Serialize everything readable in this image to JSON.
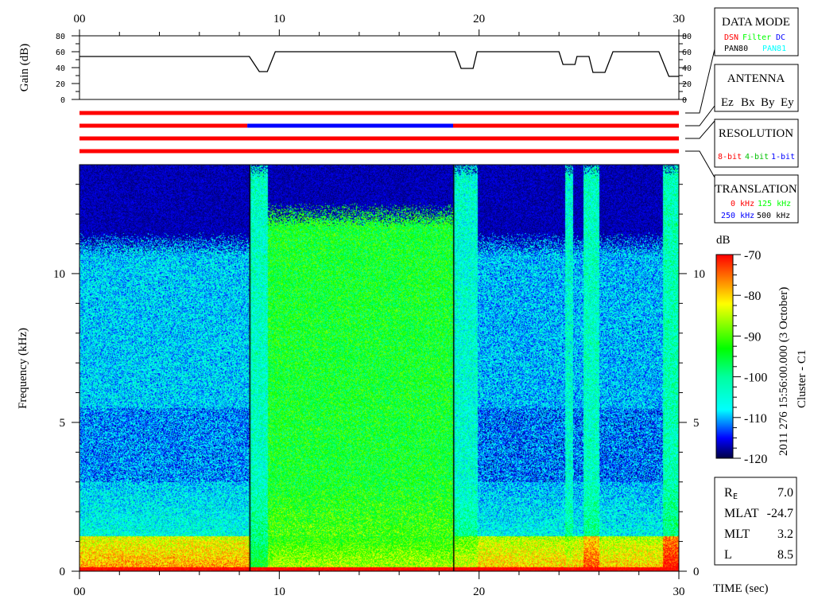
{
  "chart_data": {
    "type": "heatmap",
    "title": "",
    "spacecraft": "Cluster - C1",
    "timestamp": "2011 276 15:56:00.000 (3 October)",
    "xlabel": "TIME (sec)",
    "xlim": [
      0,
      30
    ],
    "xticks": [
      "00",
      "10",
      "20",
      "30"
    ],
    "ylabel": "Frequency (kHz)",
    "ylim": [
      0,
      13.66
    ],
    "yticks": [
      "0",
      "5",
      "10"
    ],
    "colorbar": {
      "label": "dB",
      "range": [
        -120,
        -70
      ],
      "ticks": [
        "-70",
        "-80",
        "-90",
        "-100",
        "-110",
        "-120"
      ],
      "colormap": [
        "#000040",
        "#0000ff",
        "#00ffff",
        "#00ff00",
        "#ffff00",
        "#ff8000",
        "#ff0000"
      ]
    },
    "spectrogram_segments": [
      {
        "t": [
          0,
          8.5
        ],
        "cutoff_khz": 11.0,
        "level_db": -108,
        "low_freq_db": -84
      },
      {
        "t": [
          8.5,
          9.4
        ],
        "cutoff_khz": 13.66,
        "level_db": -103,
        "low_freq_db": -100
      },
      {
        "t": [
          9.4,
          18.7
        ],
        "cutoff_khz": 12.0,
        "level_db": -94,
        "low_freq_db": -92
      },
      {
        "t": [
          18.7,
          19.9
        ],
        "cutoff_khz": 13.66,
        "level_db": -104,
        "low_freq_db": -90
      },
      {
        "t": [
          19.9,
          24.3
        ],
        "cutoff_khz": 11.0,
        "level_db": -109,
        "low_freq_db": -86
      },
      {
        "t": [
          24.3,
          24.7
        ],
        "cutoff_khz": 13.66,
        "level_db": -104,
        "low_freq_db": -88
      },
      {
        "t": [
          24.7,
          25.2
        ],
        "cutoff_khz": 11.0,
        "level_db": -109,
        "low_freq_db": -86
      },
      {
        "t": [
          25.2,
          26.0
        ],
        "cutoff_khz": 13.66,
        "level_db": -103,
        "low_freq_db": -80
      },
      {
        "t": [
          26.0,
          29.2
        ],
        "cutoff_khz": 11.0,
        "level_db": -109,
        "low_freq_db": -86
      },
      {
        "t": [
          29.2,
          30
        ],
        "cutoff_khz": 13.66,
        "level_db": -102,
        "low_freq_db": -76
      }
    ],
    "gain": {
      "ylabel": "Gain (dB)",
      "ylim": [
        0,
        80
      ],
      "yticks": [
        "0",
        "20",
        "40",
        "60",
        "80"
      ],
      "points": [
        [
          0,
          54
        ],
        [
          8.5,
          54
        ],
        [
          9.0,
          35
        ],
        [
          9.4,
          35
        ],
        [
          9.8,
          60
        ],
        [
          18.8,
          60
        ],
        [
          19.1,
          39
        ],
        [
          19.7,
          39
        ],
        [
          19.9,
          60
        ],
        [
          24.0,
          60
        ],
        [
          24.2,
          44
        ],
        [
          24.8,
          44
        ],
        [
          24.9,
          54
        ],
        [
          25.5,
          54
        ],
        [
          25.7,
          34
        ],
        [
          26.3,
          34
        ],
        [
          26.7,
          60
        ],
        [
          29.0,
          60
        ],
        [
          29.5,
          29
        ],
        [
          30,
          29
        ]
      ]
    },
    "mode_bars": [
      {
        "segments": [
          {
            "t": [
              0,
              30
            ],
            "color": "#ff0000"
          }
        ]
      },
      {
        "segments": [
          {
            "t": [
              0,
              8.4
            ],
            "color": "#ff0000"
          },
          {
            "t": [
              8.4,
              18.7
            ],
            "color": "#0000ff"
          },
          {
            "t": [
              18.7,
              30
            ],
            "color": "#ff0000"
          }
        ]
      },
      {
        "segments": [
          {
            "t": [
              0,
              30
            ],
            "color": "#ff0000"
          }
        ]
      },
      {
        "segments": [
          {
            "t": [
              0,
              30
            ],
            "color": "#ff0000"
          }
        ]
      }
    ]
  },
  "legends": {
    "data_mode": {
      "title": "DATA MODE",
      "items": [
        {
          "label": "DSN",
          "color": "#ff0000"
        },
        {
          "label": "Filter",
          "color": "#00ff00"
        },
        {
          "label": "DC",
          "color": "#0000ff"
        },
        {
          "label": "PAN80",
          "color": "#000000"
        },
        {
          "label": "PAN81",
          "color": "#00ffff"
        }
      ]
    },
    "antenna": {
      "title": "ANTENNA",
      "items": [
        {
          "label": "Ez",
          "color": "#ff0000"
        },
        {
          "label": "Bx",
          "color": "#00ff00"
        },
        {
          "label": "By",
          "color": "#0000ff"
        },
        {
          "label": "Ey",
          "color": "#000000"
        }
      ]
    },
    "resolution": {
      "title": "RESOLUTION",
      "items": [
        {
          "label": "8-bit",
          "color": "#ff0000"
        },
        {
          "label": "4-bit",
          "color": "#00c000"
        },
        {
          "label": "1-bit",
          "color": "#0000ff"
        }
      ]
    },
    "translation": {
      "title": "TRANSLATION",
      "items": [
        {
          "label": "0 kHz",
          "color": "#ff0000"
        },
        {
          "label": "125 kHz",
          "color": "#00ff00"
        },
        {
          "label": "250 kHz",
          "color": "#0000ff"
        },
        {
          "label": "500 kHz",
          "color": "#000000"
        }
      ]
    }
  },
  "position": {
    "rows": [
      {
        "label": "R",
        "sub": "E",
        "value": "7.0"
      },
      {
        "label": "MLAT",
        "sub": "",
        "value": "-24.7"
      },
      {
        "label": "MLT",
        "sub": "",
        "value": "3.2"
      },
      {
        "label": "L",
        "sub": "",
        "value": "8.5"
      }
    ]
  }
}
